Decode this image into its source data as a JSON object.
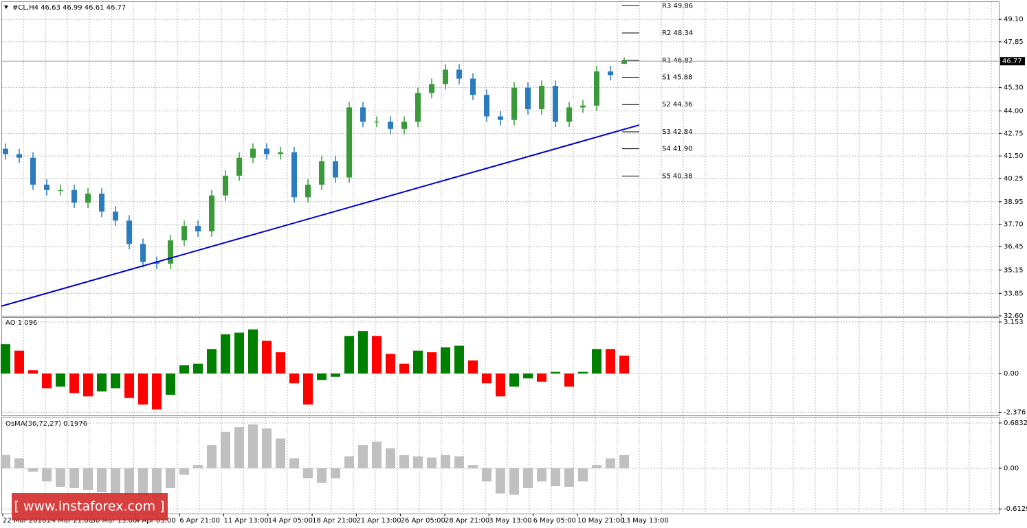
{
  "chart_data": [
    {
      "type": "candlestick",
      "title": "#CL,H4  46.63 46.99 46.61 46.77",
      "x_labels": [
        "22 Mar 2016",
        "24 Mar 21:00",
        "30 Mar 13:00",
        "4 Apr 05:00",
        "6 Apr 21:00",
        "11 Apr 13:00",
        "14 Apr 05:00",
        "18 Apr 21:00",
        "21 Apr 13:00",
        "26 Apr 05:00",
        "28 Apr 21:00",
        "3 May 13:00",
        "6 May 05:00",
        "10 May 21:00",
        "13 May 13:00"
      ],
      "open": [
        41.9,
        41.6,
        41.4,
        39.9,
        39.6,
        39.6,
        38.9,
        39.4,
        38.4,
        37.9,
        36.6,
        35.6,
        35.5,
        36.8,
        37.6,
        37.3,
        39.3,
        40.4,
        41.4,
        41.9,
        41.6,
        41.7,
        39.2,
        39.9,
        41.2,
        40.3,
        44.2,
        43.4,
        43.4,
        43.0,
        43.4,
        45.0,
        45.5,
        46.3,
        45.8,
        44.9,
        43.7,
        43.5,
        45.3,
        44.1,
        45.4,
        43.4,
        44.2,
        44.3,
        46.2,
        46.63
      ],
      "high": [
        42.2,
        41.9,
        41.7,
        40.2,
        39.9,
        39.9,
        39.7,
        39.7,
        38.7,
        38.2,
        36.9,
        35.9,
        37.1,
        37.9,
        37.9,
        39.6,
        40.7,
        41.7,
        42.2,
        42.2,
        42.0,
        42.0,
        40.2,
        41.5,
        41.5,
        44.5,
        44.5,
        43.7,
        43.7,
        43.7,
        45.3,
        45.8,
        46.6,
        46.6,
        46.1,
        45.2,
        44.0,
        45.6,
        45.6,
        45.7,
        45.7,
        44.5,
        44.6,
        46.5,
        46.5,
        46.99
      ],
      "low": [
        41.3,
        41.1,
        39.6,
        39.3,
        39.3,
        38.6,
        38.6,
        38.1,
        37.6,
        36.3,
        35.3,
        35.2,
        35.2,
        36.5,
        37.0,
        37.0,
        39.0,
        40.1,
        41.1,
        41.3,
        41.3,
        38.9,
        38.9,
        39.6,
        40.0,
        40.0,
        43.1,
        43.1,
        42.7,
        42.7,
        43.1,
        44.7,
        45.2,
        45.5,
        44.6,
        43.4,
        43.2,
        43.2,
        43.8,
        43.8,
        43.1,
        43.1,
        43.9,
        44.0,
        45.7,
        46.61
      ],
      "close": [
        41.6,
        41.4,
        39.9,
        39.6,
        39.6,
        38.9,
        39.4,
        38.4,
        37.9,
        36.6,
        35.6,
        35.5,
        36.8,
        37.6,
        37.3,
        39.3,
        40.4,
        41.4,
        41.9,
        41.6,
        41.7,
        39.2,
        39.9,
        41.2,
        40.3,
        44.2,
        43.4,
        43.4,
        43.0,
        43.4,
        45.0,
        45.5,
        46.3,
        45.8,
        44.9,
        43.7,
        43.5,
        45.3,
        44.1,
        45.4,
        43.4,
        44.2,
        44.3,
        46.2,
        46.0,
        46.77
      ],
      "up_color": "#3a9a3a",
      "down_color": "#2b7bbf",
      "ylim": [
        32.6,
        50.1
      ],
      "yticks": [
        {
          "value": 49.1,
          "label": "49.10"
        },
        47.85,
        {
          "value": 45.3,
          "label": "45.30"
        },
        {
          "value": 44.0,
          "label": "44.00"
        },
        42.75,
        {
          "value": 41.5,
          "label": "41.50"
        },
        40.25,
        38.95,
        {
          "value": 37.7,
          "label": "37.70"
        },
        36.45,
        35.15,
        33.85,
        {
          "value": 32.6,
          "label": "32.60"
        }
      ],
      "levels": [
        {
          "label": "R3 49.86",
          "value": 49.86
        },
        {
          "label": "R2 48.34",
          "value": 48.34
        },
        {
          "label": "R1 46.82",
          "value": 46.82
        },
        {
          "label": "S1 45.88",
          "value": 45.88
        },
        {
          "label": "S2 44.36",
          "value": 44.36
        },
        {
          "label": "S3 42.84",
          "value": 42.84
        },
        {
          "label": "S4 41.90",
          "value": 41.9
        },
        {
          "label": "S5 40.38",
          "value": 40.38
        }
      ],
      "trendline": [
        33.14,
        43.22
      ],
      "trendline_color": "#0000c8",
      "current_price": 46.77,
      "grid": true
    },
    {
      "type": "bar",
      "title": "AO 1.096",
      "values": [
        1.8,
        1.4,
        0.2,
        -0.9,
        -0.8,
        -1.2,
        -1.4,
        -1.1,
        -0.9,
        -1.5,
        -1.9,
        -2.2,
        -1.3,
        0.5,
        0.6,
        1.5,
        2.4,
        2.5,
        2.7,
        2.0,
        1.3,
        -0.6,
        -1.9,
        -0.4,
        -0.2,
        2.3,
        2.6,
        2.3,
        1.2,
        0.6,
        1.4,
        1.3,
        1.6,
        1.7,
        0.8,
        -0.6,
        -1.4,
        -0.8,
        -0.3,
        -0.5,
        0.1,
        -0.8,
        0.1,
        1.5,
        1.5,
        1.096
      ],
      "up_color": "#008000",
      "down_color": "#ff0000",
      "ylim": [
        -2.563,
        3.445
      ],
      "yticks": [
        3.153,
        {
          "value": 0,
          "label": "0.00"
        },
        -2.376
      ],
      "grid": true
    },
    {
      "type": "bar",
      "title": "OsMA(36,72,27) 0.1976",
      "values": [
        0.2,
        0.15,
        -0.05,
        -0.2,
        -0.28,
        -0.3,
        -0.33,
        -0.36,
        -0.38,
        -0.4,
        -0.42,
        -0.44,
        -0.3,
        -0.1,
        0.05,
        0.35,
        0.55,
        0.62,
        0.66,
        0.6,
        0.45,
        0.15,
        -0.15,
        -0.22,
        -0.15,
        0.18,
        0.35,
        0.4,
        0.3,
        0.2,
        0.18,
        0.16,
        0.2,
        0.18,
        0.05,
        -0.2,
        -0.38,
        -0.4,
        -0.3,
        -0.2,
        -0.27,
        -0.28,
        -0.2,
        0.05,
        0.15,
        0.2
      ],
      "color": "#c0c0c0",
      "ylim": [
        -0.683,
        0.776
      ],
      "yticks": [
        0.6832,
        {
          "value": 0,
          "label": "0.00"
        },
        -0.6129
      ],
      "grid": true
    }
  ],
  "watermark": "[  www.instaforex.com ]"
}
